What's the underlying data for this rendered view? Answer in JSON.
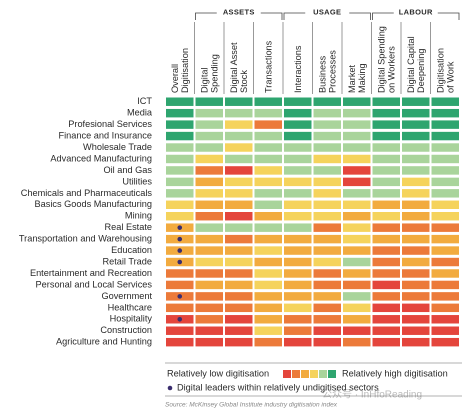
{
  "chart_data": {
    "type": "heatmap",
    "groups": [
      {
        "label": "ASSETS",
        "from": 1,
        "to": 3
      },
      {
        "label": "USAGE",
        "from": 4,
        "to": 6
      },
      {
        "label": "LABOUR",
        "from": 7,
        "to": 9
      }
    ],
    "columns": [
      [
        "Overall",
        "Digitisation"
      ],
      [
        "Digital",
        "Spending"
      ],
      [
        "Digital Asset",
        "Stock"
      ],
      [
        "Transactions"
      ],
      [
        "Interactions"
      ],
      [
        "Business",
        "Processes"
      ],
      [
        "Market",
        "Making"
      ],
      [
        "Digital Spending",
        "on Workers"
      ],
      [
        "Digital Capital",
        "Deepening"
      ],
      [
        "Digitisation",
        "of Work"
      ]
    ],
    "rows": [
      "ICT",
      "Media",
      "Profesional Services",
      "Finance and Insurance",
      "Wholesale Trade",
      "Advanced Manufacturing",
      "Oil and Gas",
      "Utilities",
      "Chemicals and Pharmaceuticals",
      "Basics Goods Manufacturing",
      "Mining",
      "Real Estate",
      "Transportation and Warehousing",
      "Education",
      "Retail Trade",
      "Entertainment and Recreation",
      "Personal and Local Services",
      "Government",
      "Healthcare",
      "Hospitality",
      "Construction",
      "Agriculture and Hunting"
    ],
    "values": [
      [
        6,
        6,
        6,
        6,
        6,
        6,
        6,
        6,
        6,
        6
      ],
      [
        6,
        5,
        5,
        5,
        6,
        5,
        5,
        6,
        6,
        6
      ],
      [
        6,
        5,
        4,
        2,
        6,
        5,
        5,
        6,
        6,
        6
      ],
      [
        6,
        5,
        5,
        5,
        6,
        5,
        5,
        6,
        6,
        6
      ],
      [
        5,
        5,
        4,
        5,
        5,
        5,
        5,
        5,
        5,
        5
      ],
      [
        5,
        4,
        5,
        5,
        5,
        4,
        4,
        5,
        5,
        5
      ],
      [
        5,
        2,
        1,
        4,
        5,
        5,
        1,
        5,
        5,
        5
      ],
      [
        5,
        3,
        4,
        4,
        4,
        4,
        1,
        5,
        4,
        5
      ],
      [
        5,
        4,
        4,
        5,
        5,
        4,
        5,
        5,
        4,
        5
      ],
      [
        4,
        3,
        3,
        5,
        4,
        4,
        4,
        3,
        3,
        4
      ],
      [
        4,
        2,
        1,
        3,
        4,
        4,
        3,
        4,
        3,
        4
      ],
      [
        3,
        5,
        5,
        5,
        5,
        2,
        4,
        2,
        2,
        2
      ],
      [
        3,
        3,
        2,
        3,
        3,
        3,
        4,
        3,
        3,
        3
      ],
      [
        3,
        3,
        3,
        4,
        3,
        3,
        3,
        2,
        2,
        3
      ],
      [
        3,
        4,
        4,
        3,
        3,
        4,
        5,
        2,
        3,
        2
      ],
      [
        2,
        2,
        2,
        4,
        3,
        2,
        3,
        2,
        2,
        3
      ],
      [
        2,
        3,
        3,
        4,
        3,
        2,
        2,
        1,
        2,
        2
      ],
      [
        2,
        2,
        2,
        3,
        3,
        3,
        5,
        2,
        2,
        2
      ],
      [
        2,
        2,
        2,
        3,
        4,
        2,
        4,
        1,
        1,
        2
      ],
      [
        1,
        2,
        1,
        3,
        2,
        2,
        3,
        1,
        1,
        1
      ],
      [
        1,
        1,
        1,
        4,
        2,
        1,
        1,
        1,
        1,
        1
      ],
      [
        1,
        1,
        1,
        2,
        1,
        1,
        2,
        1,
        1,
        1
      ]
    ],
    "leaders": [
      false,
      false,
      false,
      false,
      false,
      false,
      false,
      false,
      false,
      false,
      false,
      true,
      true,
      true,
      true,
      false,
      false,
      true,
      false,
      true,
      false,
      false
    ],
    "colors": [
      "#e4453c",
      "#ec7a3a",
      "#f2ab3f",
      "#f5d35c",
      "#a9d49b",
      "#2ea56f"
    ],
    "legend_low": "Relatively low digitisation",
    "legend_high": "Relatively high digitisation",
    "legend_leaders": "Digital leaders within relatively undigitised sectors",
    "source": "Source: McKinsey Global Institute industry digitisation index",
    "watermark": "公众号 · InHfoReading"
  }
}
